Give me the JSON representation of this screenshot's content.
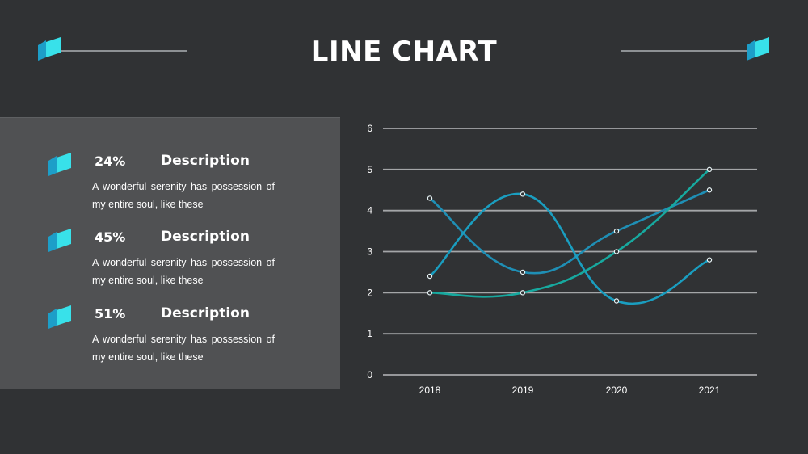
{
  "page": {
    "title": "LINE CHART"
  },
  "colors": {
    "background": "#303234",
    "panel": "#505153",
    "accent_blue": "#1f8fb5",
    "accent_teal": "#1aa7a2",
    "logo_light": "#38e1ea",
    "logo_dark": "#1d9ec8"
  },
  "icons": {
    "logo": "parallelogram-logo-icon"
  },
  "items": [
    {
      "percent": "24%",
      "heading": "Description",
      "text": "A wonderful serenity has possession of my entire soul, like these"
    },
    {
      "percent": "45%",
      "heading": "Description",
      "text": "A wonderful serenity has possession of my entire soul, like these"
    },
    {
      "percent": "51%",
      "heading": "Description",
      "text": "A wonderful serenity has possession of my entire soul, like these"
    }
  ],
  "chart_data": {
    "type": "line",
    "title": "",
    "xlabel": "",
    "ylabel": "",
    "categories": [
      "2018",
      "2019",
      "2020",
      "2021"
    ],
    "ylim": [
      0,
      6
    ],
    "yticks": [
      "0",
      "1",
      "2",
      "3",
      "4",
      "5",
      "6"
    ],
    "grid": true,
    "smooth": true,
    "series": [
      {
        "color": "#1f8fb5",
        "values": [
          4.3,
          2.5,
          3.5,
          4.5
        ]
      },
      {
        "color": "#1a9ec0",
        "values": [
          2.4,
          4.4,
          1.8,
          2.8
        ]
      },
      {
        "color": "#17a99f",
        "values": [
          2.0,
          2.0,
          3.0,
          5.0
        ]
      }
    ]
  }
}
